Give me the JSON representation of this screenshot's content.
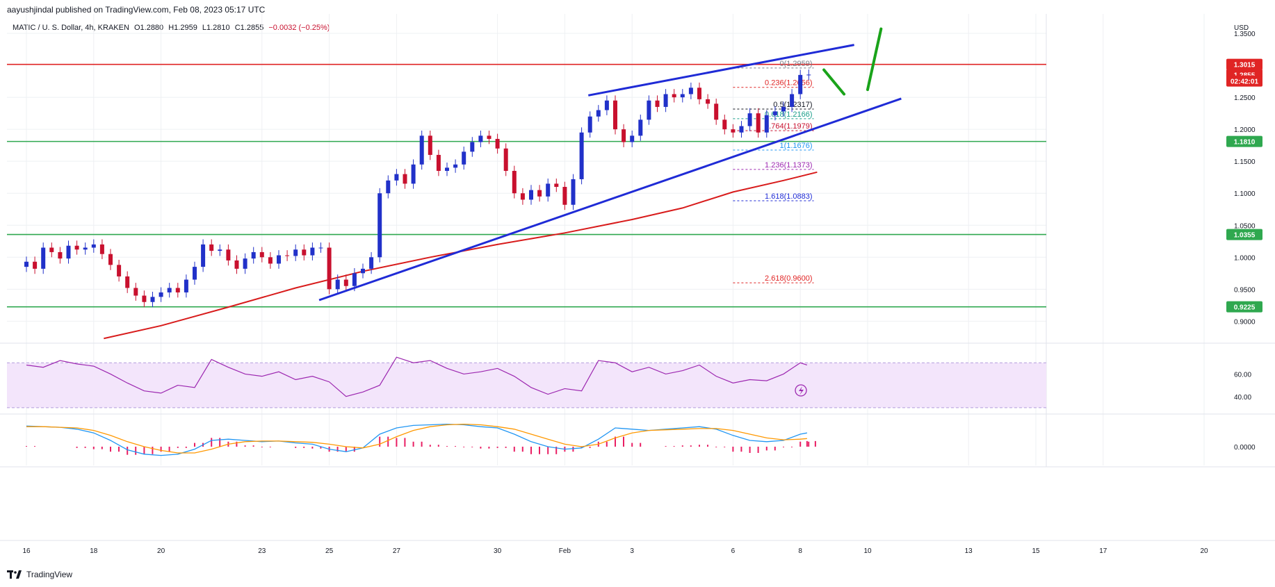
{
  "header": {
    "publisher": "aayushjindal published on TradingView.com, Feb 08, 2023 05:17 UTC",
    "symbol": "MATIC / U. S. Dollar, 4h, KRAKEN",
    "open": "O1.2880",
    "high": "H1.2959",
    "low": "L1.2810",
    "close": "C1.2855",
    "change": "−0.0032 (−0.25%)"
  },
  "footer": {
    "brand": "TradingView"
  },
  "colors": {
    "bull": "#2131c9",
    "bear": "#c8102e",
    "ma": "#d81b1b",
    "trend": "#1f2bd6",
    "support": "#2fa84f",
    "resistance": "#e02424",
    "arrow": "#1aa31a",
    "rsi": "#9c27b0",
    "macd": "#2196f3",
    "signal": "#ff9800",
    "hist": "#e91e63"
  },
  "chart_data": [
    {
      "type": "candlestick",
      "title": "MATIC / U. S. Dollar, 4h, KRAKEN",
      "y_axis": {
        "label": "USD",
        "ticks": [
          "1.3500",
          "1.2500",
          "1.2000",
          "1.1500",
          "1.1000",
          "1.0500",
          "1.0000",
          "0.9500",
          "0.9000"
        ],
        "tick_values": [
          1.35,
          1.25,
          1.2,
          1.15,
          1.1,
          1.05,
          1.0,
          0.95,
          0.9
        ],
        "ylim": [
          0.87,
          1.375
        ]
      },
      "x_axis": {
        "labels": [
          "16",
          "18",
          "20",
          "23",
          "25",
          "27",
          "30",
          "Feb",
          "3",
          "6",
          "8",
          "10",
          "13",
          "15",
          "17",
          "20"
        ],
        "label_positions": [
          0.0,
          2.0,
          4.0,
          7.0,
          9.0,
          11.0,
          14.0,
          16.0,
          18.0,
          21.0,
          23.0,
          25.0,
          28.0,
          30.0,
          32.0,
          35.0
        ],
        "unit": "day index"
      },
      "price_badges": [
        {
          "text": "1.3015",
          "value": 1.3015,
          "color": "#e02424"
        },
        {
          "text": "1.2855",
          "value": 1.2855,
          "color": "#e02424"
        },
        {
          "text": "02:42:01",
          "value": 1.2755,
          "color": "#e02424"
        },
        {
          "text": "1.1810",
          "value": 1.181,
          "color": "#2fa84f"
        },
        {
          "text": "1.0355",
          "value": 1.0355,
          "color": "#2fa84f"
        },
        {
          "text": "0.9225",
          "value": 0.9225,
          "color": "#2fa84f"
        }
      ],
      "horizontal_lines": [
        {
          "value": 1.3015,
          "color": "#e02424"
        },
        {
          "value": 1.181,
          "color": "#2fa84f"
        },
        {
          "value": 1.0355,
          "color": "#2fa84f"
        },
        {
          "value": 0.9225,
          "color": "#2fa84f"
        }
      ],
      "fib_levels": [
        {
          "text": "0(1.2959)",
          "value": 1.2959,
          "color": "#787b86"
        },
        {
          "text": "0.236(1.2656)",
          "value": 1.2656,
          "color": "#e02424"
        },
        {
          "text": "0.5(1.2317)",
          "value": 1.2317,
          "color": "#131722"
        },
        {
          "text": "0.618(1.2166)",
          "value": 1.2166,
          "color": "#1a9e8a"
        },
        {
          "text": "0.764(1.1979)",
          "value": 1.1979,
          "color": "#c8102e"
        },
        {
          "text": "1(1.1676)",
          "value": 1.1676,
          "color": "#2196f3"
        },
        {
          "text": "1.236(1.1373)",
          "value": 1.1373,
          "color": "#9c27b0"
        },
        {
          "text": "1.618(1.0883)",
          "value": 1.0883,
          "color": "#1f2bd6"
        },
        {
          "text": "2.618(0.9600)",
          "value": 0.96,
          "color": "#e02424"
        }
      ],
      "fib_x_range": [
        21.0,
        23.4
      ],
      "trend_lines": [
        {
          "name": "upper-channel",
          "points": [
            [
              16.7,
              1.253
            ],
            [
              24.6,
              1.332
            ]
          ]
        },
        {
          "name": "lower-trendline",
          "points": [
            [
              8.7,
              0.933
            ],
            [
              26.0,
              1.248
            ]
          ]
        }
      ],
      "projection_arrows": [
        {
          "points": [
            [
              23.7,
              1.293
            ],
            [
              24.3,
              1.255
            ]
          ]
        },
        {
          "points": [
            [
              25.0,
              1.262
            ],
            [
              25.4,
              1.357
            ]
          ]
        }
      ],
      "ma_line": {
        "x": [
          2.3,
          4.0,
          6.0,
          8.0,
          10.0,
          12.0,
          14.0,
          16.0,
          18.0,
          19.5,
          21.0,
          22.5,
          23.5
        ],
        "y": [
          0.873,
          0.893,
          0.922,
          0.952,
          0.978,
          1.0,
          1.02,
          1.038,
          1.059,
          1.077,
          1.102,
          1.12,
          1.133
        ]
      },
      "candles": {
        "x": [
          0.0,
          0.25,
          0.5,
          0.75,
          1.0,
          1.25,
          1.5,
          1.75,
          2.0,
          2.25,
          2.5,
          2.75,
          3.0,
          3.25,
          3.5,
          3.75,
          4.0,
          4.25,
          4.5,
          4.75,
          5.0,
          5.25,
          5.5,
          5.75,
          6.0,
          6.25,
          6.5,
          6.75,
          7.0,
          7.25,
          7.5,
          7.75,
          8.0,
          8.25,
          8.5,
          8.75,
          9.0,
          9.25,
          9.5,
          9.75,
          10.0,
          10.25,
          10.5,
          10.75,
          11.0,
          11.25,
          11.5,
          11.75,
          12.0,
          12.25,
          12.5,
          12.75,
          13.0,
          13.25,
          13.5,
          13.75,
          14.0,
          14.25,
          14.5,
          14.75,
          15.0,
          15.25,
          15.5,
          15.75,
          16.0,
          16.25,
          16.5,
          16.75,
          17.0,
          17.25,
          17.5,
          17.75,
          18.0,
          18.25,
          18.5,
          18.75,
          19.0,
          19.25,
          19.5,
          19.75,
          20.0,
          20.25,
          20.5,
          20.75,
          21.0,
          21.25,
          21.5,
          21.75,
          22.0,
          22.25,
          22.5,
          22.75,
          23.0,
          23.25
        ],
        "open": [
          0.985,
          0.993,
          0.982,
          1.015,
          1.008,
          0.998,
          1.018,
          1.012,
          1.015,
          1.02,
          1.005,
          0.988,
          0.97,
          0.952,
          0.94,
          0.93,
          0.938,
          0.945,
          0.952,
          0.945,
          0.965,
          0.985,
          1.02,
          1.01,
          1.012,
          0.995,
          0.982,
          0.998,
          1.008,
          1.0,
          0.99,
          1.003,
          1.002,
          1.012,
          1.003,
          1.015,
          1.015,
          0.95,
          0.965,
          0.955,
          0.975,
          0.982,
          1.0,
          1.1,
          1.12,
          1.13,
          1.115,
          1.145,
          1.19,
          1.16,
          1.135,
          1.14,
          1.145,
          1.165,
          1.18,
          1.19,
          1.185,
          1.17,
          1.135,
          1.1,
          1.09,
          1.105,
          1.095,
          1.115,
          1.11,
          1.082,
          1.122,
          1.195,
          1.22,
          1.23,
          1.245,
          1.2,
          1.18,
          1.19,
          1.215,
          1.245,
          1.235,
          1.255,
          1.25,
          1.255,
          1.265,
          1.247,
          1.24,
          1.215,
          1.2,
          1.195,
          1.205,
          1.225,
          1.195,
          1.222,
          1.228,
          1.235,
          1.255,
          1.285
        ],
        "close": [
          0.993,
          0.982,
          1.015,
          1.008,
          0.998,
          1.018,
          1.012,
          1.015,
          1.02,
          1.005,
          0.988,
          0.97,
          0.952,
          0.94,
          0.93,
          0.938,
          0.945,
          0.952,
          0.945,
          0.965,
          0.985,
          1.02,
          1.01,
          1.012,
          0.995,
          0.982,
          0.998,
          1.008,
          1.0,
          0.99,
          1.003,
          1.002,
          1.012,
          1.003,
          1.015,
          1.015,
          0.95,
          0.965,
          0.955,
          0.975,
          0.982,
          1.0,
          1.1,
          1.12,
          1.13,
          1.115,
          1.145,
          1.19,
          1.16,
          1.135,
          1.14,
          1.145,
          1.165,
          1.18,
          1.19,
          1.185,
          1.17,
          1.135,
          1.1,
          1.09,
          1.105,
          1.095,
          1.115,
          1.11,
          1.082,
          1.122,
          1.195,
          1.22,
          1.23,
          1.245,
          1.2,
          1.18,
          1.19,
          1.215,
          1.245,
          1.235,
          1.255,
          1.25,
          1.255,
          1.265,
          1.247,
          1.24,
          1.215,
          1.2,
          1.195,
          1.205,
          1.225,
          1.195,
          1.222,
          1.228,
          1.235,
          1.255,
          1.285,
          1.2855
        ]
      }
    },
    {
      "type": "line",
      "title": "RSI",
      "y_axis": {
        "ticks": [
          "60.00",
          "40.00"
        ],
        "tick_values": [
          60,
          40
        ],
        "ylim": [
          25,
          85
        ]
      },
      "bands": [
        70,
        30
      ],
      "x": [
        0,
        0.5,
        1,
        1.5,
        2,
        2.5,
        3,
        3.5,
        4,
        4.5,
        5,
        5.5,
        6,
        6.5,
        7,
        7.5,
        8,
        8.5,
        9,
        9.5,
        10,
        10.5,
        11,
        11.5,
        12,
        12.5,
        13,
        13.5,
        14,
        14.5,
        15,
        15.5,
        16,
        16.5,
        17,
        17.5,
        18,
        18.5,
        19,
        19.5,
        20,
        20.5,
        21,
        21.5,
        22,
        22.5,
        23,
        23.2
      ],
      "values": [
        68,
        66,
        72,
        69,
        67,
        60,
        52,
        45,
        43,
        50,
        48,
        73,
        66,
        60,
        58,
        62,
        55,
        58,
        53,
        40,
        44,
        50,
        75,
        70,
        72,
        65,
        60,
        62,
        65,
        58,
        48,
        42,
        47,
        45,
        72,
        70,
        62,
        66,
        60,
        63,
        68,
        58,
        52,
        55,
        54,
        60,
        70,
        68
      ]
    },
    {
      "type": "line",
      "title": "MACD",
      "y_axis": {
        "ticks": [
          "0.0000"
        ],
        "tick_values": [
          0
        ],
        "ylim": [
          -0.03,
          0.05
        ]
      },
      "x": [
        0,
        0.5,
        1,
        1.5,
        2,
        2.5,
        3,
        3.5,
        4,
        4.5,
        5,
        5.5,
        6,
        6.5,
        7,
        7.5,
        8,
        8.5,
        9,
        9.5,
        10,
        10.5,
        11,
        11.5,
        12,
        12.5,
        13,
        13.5,
        14,
        14.5,
        15,
        15.5,
        16,
        16.5,
        17,
        17.5,
        18,
        18.5,
        19,
        19.5,
        20,
        20.5,
        21,
        21.5,
        22,
        22.5,
        23,
        23.2
      ],
      "macd": [
        0.033,
        0.032,
        0.031,
        0.028,
        0.022,
        0.01,
        -0.005,
        -0.012,
        -0.014,
        -0.012,
        -0.004,
        0.01,
        0.012,
        0.01,
        0.008,
        0.009,
        0.006,
        0.004,
        -0.004,
        -0.008,
        -0.002,
        0.02,
        0.03,
        0.034,
        0.035,
        0.036,
        0.035,
        0.032,
        0.03,
        0.02,
        0.008,
        0.0,
        -0.004,
        -0.002,
        0.012,
        0.03,
        0.028,
        0.026,
        0.028,
        0.03,
        0.032,
        0.028,
        0.018,
        0.01,
        0.008,
        0.01,
        0.02,
        0.022
      ],
      "signal": [
        0.032,
        0.032,
        0.031,
        0.03,
        0.026,
        0.018,
        0.008,
        0.0,
        -0.006,
        -0.01,
        -0.01,
        -0.004,
        0.004,
        0.008,
        0.009,
        0.009,
        0.008,
        0.007,
        0.004,
        0.0,
        -0.002,
        0.004,
        0.016,
        0.026,
        0.032,
        0.035,
        0.036,
        0.035,
        0.032,
        0.028,
        0.02,
        0.012,
        0.004,
        0.0,
        0.004,
        0.014,
        0.022,
        0.026,
        0.027,
        0.028,
        0.029,
        0.029,
        0.026,
        0.02,
        0.014,
        0.011,
        0.012,
        0.013
      ],
      "histogram": [
        0.001,
        0.0,
        0.0,
        -0.002,
        -0.004,
        -0.008,
        -0.013,
        -0.012,
        -0.008,
        -0.002,
        0.006,
        0.014,
        0.008,
        0.002,
        -0.001,
        0.0,
        -0.002,
        -0.003,
        -0.008,
        -0.008,
        0.0,
        0.016,
        0.014,
        0.008,
        0.003,
        0.001,
        -0.001,
        -0.003,
        -0.002,
        -0.008,
        -0.012,
        -0.012,
        -0.008,
        -0.002,
        0.008,
        0.016,
        0.006,
        0.0,
        0.001,
        0.002,
        0.003,
        -0.001,
        -0.008,
        -0.01,
        -0.006,
        -0.001,
        0.008,
        0.009
      ]
    }
  ]
}
